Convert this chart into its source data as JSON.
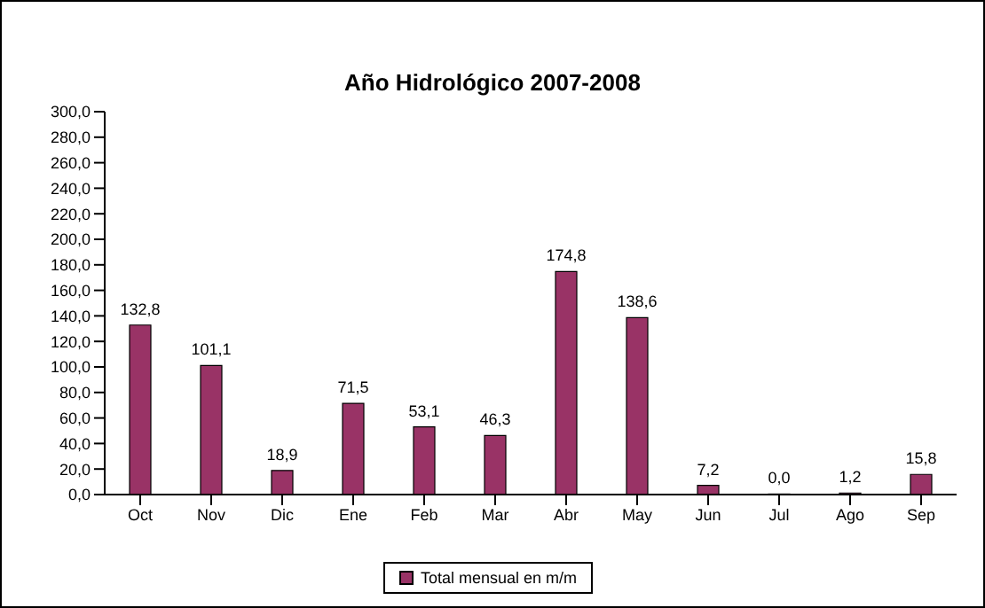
{
  "chart_data": {
    "type": "bar",
    "title": "Año Hidrológico 2007-2008",
    "categories": [
      "Oct",
      "Nov",
      "Dic",
      "Ene",
      "Feb",
      "Mar",
      "Abr",
      "May",
      "Jun",
      "Jul",
      "Ago",
      "Sep"
    ],
    "series": [
      {
        "name": "Total mensual en m/m",
        "color": "#993366",
        "values": [
          132.8,
          101.1,
          18.9,
          71.5,
          53.1,
          46.3,
          174.8,
          138.6,
          7.2,
          0.0,
          1.2,
          15.8
        ],
        "value_labels": [
          "132,8",
          "101,1",
          "18,9",
          "71,5",
          "53,1",
          "46,3",
          "174,8",
          "138,6",
          "7,2",
          "0,0",
          "1,2",
          "15,8"
        ]
      }
    ],
    "ylim": [
      0,
      300
    ],
    "yticks": [
      {
        "value": 0,
        "label": "0,0"
      },
      {
        "value": 20,
        "label": "20,0"
      },
      {
        "value": 40,
        "label": "40,0"
      },
      {
        "value": 60,
        "label": "60,0"
      },
      {
        "value": 80,
        "label": "80,0"
      },
      {
        "value": 100,
        "label": "100,0"
      },
      {
        "value": 120,
        "label": "120,0"
      },
      {
        "value": 140,
        "label": "140,0"
      },
      {
        "value": 160,
        "label": "160,0"
      },
      {
        "value": 180,
        "label": "180,0"
      },
      {
        "value": 200,
        "label": "200,0"
      },
      {
        "value": 220,
        "label": "220,0"
      },
      {
        "value": 240,
        "label": "240,0"
      },
      {
        "value": 260,
        "label": "260,0"
      },
      {
        "value": 280,
        "label": "280,0"
      },
      {
        "value": 300,
        "label": "300,0"
      }
    ],
    "grid": false,
    "legend": "bottom"
  }
}
